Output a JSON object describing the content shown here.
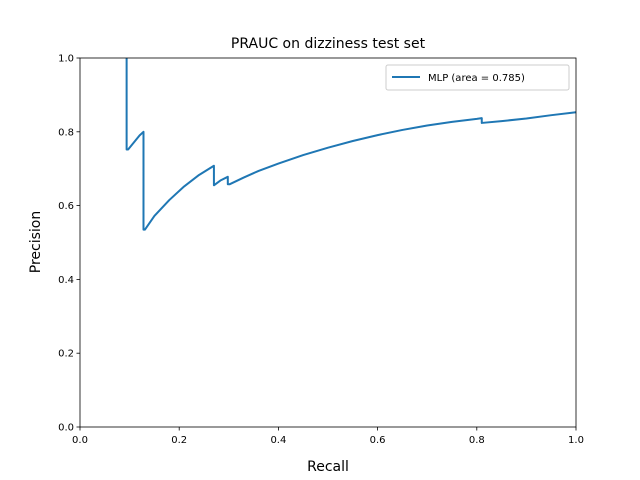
{
  "chart_data": {
    "type": "line",
    "title": "PRAUC on dizziness test set",
    "xlabel": "Recall",
    "ylabel": "Precision",
    "xlim": [
      0.0,
      1.0
    ],
    "ylim": [
      0.0,
      1.0
    ],
    "xticks": [
      "0.0",
      "0.2",
      "0.4",
      "0.6",
      "0.8",
      "1.0"
    ],
    "yticks": [
      "0.0",
      "0.2",
      "0.4",
      "0.6",
      "0.8",
      "1.0"
    ],
    "grid": false,
    "legend_position": "top-right",
    "series": [
      {
        "name": "MLP (area = 0.785)",
        "color": "#1f77b4",
        "x": [
          0.094,
          0.094,
          0.094,
          0.097,
          0.12,
          0.128,
          0.128,
          0.131,
          0.15,
          0.18,
          0.21,
          0.24,
          0.27,
          0.27,
          0.283,
          0.298,
          0.298,
          0.302,
          0.33,
          0.36,
          0.4,
          0.45,
          0.5,
          0.55,
          0.6,
          0.65,
          0.7,
          0.75,
          0.8,
          0.81,
          0.81,
          0.85,
          0.9,
          0.95,
          1.0
        ],
        "y": [
          1.0,
          0.95,
          0.752,
          0.752,
          0.79,
          0.8,
          0.535,
          0.535,
          0.572,
          0.615,
          0.652,
          0.683,
          0.708,
          0.655,
          0.668,
          0.678,
          0.658,
          0.658,
          0.676,
          0.694,
          0.714,
          0.737,
          0.757,
          0.775,
          0.791,
          0.805,
          0.817,
          0.827,
          0.835,
          0.837,
          0.824,
          0.829,
          0.836,
          0.845,
          0.853
        ]
      }
    ]
  }
}
